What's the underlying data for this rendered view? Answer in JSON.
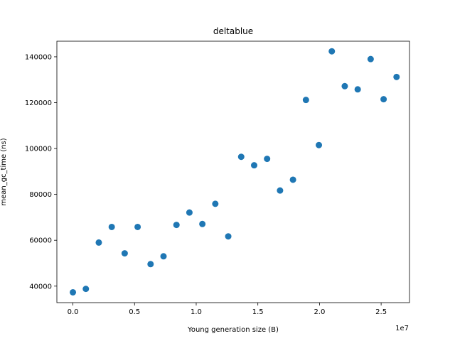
{
  "chart_data": {
    "type": "scatter",
    "title": "deltablue",
    "xlabel": "Young generation size (B)",
    "ylabel": "mean_gc_time (ns)",
    "x_offset_label": "1e7",
    "xlim": [
      -1300000,
      27300000
    ],
    "ylim": [
      32800,
      146800
    ],
    "x_ticks": [
      0,
      5000000,
      10000000,
      15000000,
      20000000,
      25000000
    ],
    "x_tick_labels": [
      "0.0",
      "0.5",
      "1.0",
      "1.5",
      "2.0",
      "2.5"
    ],
    "y_ticks": [
      40000,
      60000,
      80000,
      100000,
      120000,
      140000
    ],
    "y_tick_labels": [
      "40000",
      "60000",
      "80000",
      "100000",
      "120000",
      "140000"
    ],
    "grid": false,
    "marker_color": "#1f77b4",
    "series": [
      {
        "x": [
          0,
          1050000,
          2100000,
          3150000,
          4200000,
          5250000,
          6300000,
          7350000,
          8400000,
          9450000,
          10500000,
          11550000,
          12600000,
          13650000,
          14700000,
          15750000,
          16800000,
          17850000,
          18900000,
          19950000,
          21000000,
          22050000,
          23100000,
          24150000,
          25200000,
          26250000
        ],
        "y": [
          37300,
          38800,
          59000,
          65800,
          54300,
          65800,
          49600,
          53000,
          66700,
          72100,
          67100,
          75900,
          61700,
          96400,
          92700,
          95500,
          81700,
          86400,
          121200,
          101500,
          142400,
          127200,
          125800,
          139000,
          121500,
          131200
        ]
      }
    ]
  }
}
